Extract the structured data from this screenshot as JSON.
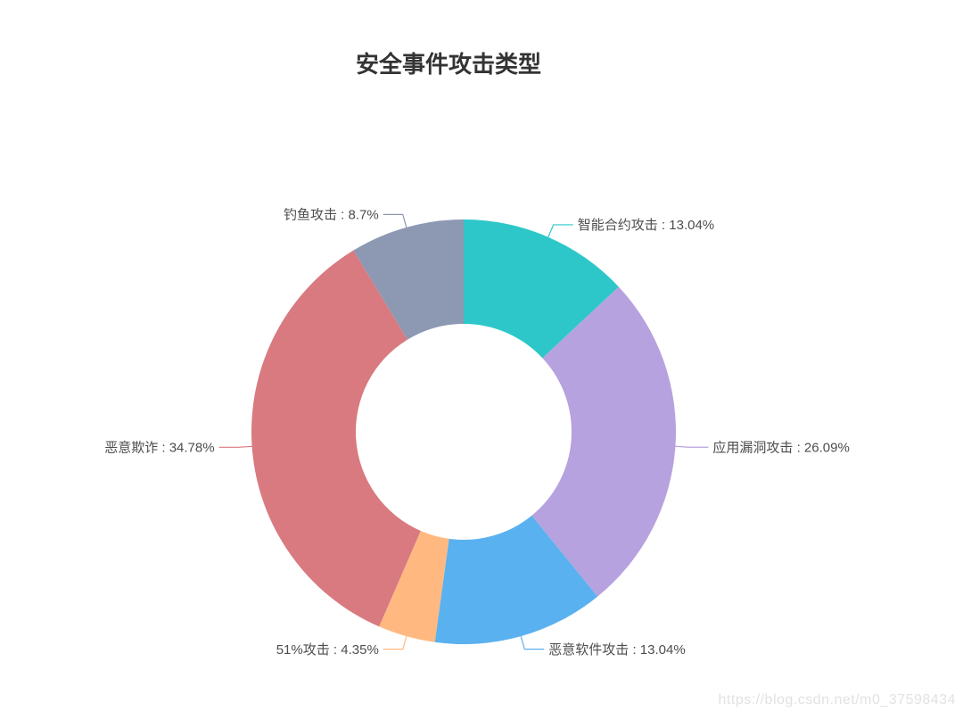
{
  "title": {
    "text": "安全事件攻击类型"
  },
  "watermark": {
    "text": "https://blog.csdn.net/m0_37598434"
  },
  "chart_data": {
    "type": "pie",
    "subtype": "donut",
    "title": "安全事件攻击类型",
    "legend": "none",
    "background": "#ffffff",
    "label_color": "#4d4d4d",
    "label_font_size": 15,
    "center": [
      520,
      484
    ],
    "outer_radius": 238,
    "inner_radius": 121,
    "start_angle_deg": 0,
    "direction": "clockwise",
    "unit": "%",
    "series": [
      {
        "name": "智能合约攻击",
        "value": 13.04,
        "label": "智能合约攻击 : 13.04%",
        "color": "#2ec7c9"
      },
      {
        "name": "应用漏洞攻击",
        "value": 26.09,
        "label": "应用漏洞攻击 : 26.09%",
        "color": "#b6a2de"
      },
      {
        "name": "恶意软件攻击",
        "value": 13.04,
        "label": "恶意软件攻击 : 13.04%",
        "color": "#5ab1ef"
      },
      {
        "name": "51%攻击",
        "value": 4.35,
        "label": "51%攻击 : 4.35%",
        "color": "#ffb980"
      },
      {
        "name": "恶意欺诈",
        "value": 34.78,
        "label": "恶意欺诈 : 34.78%",
        "color": "#d87a80"
      },
      {
        "name": "钓鱼攻击",
        "value": 8.7,
        "label": "钓鱼攻击 : 8.7%",
        "color": "#8d98b3"
      }
    ]
  }
}
